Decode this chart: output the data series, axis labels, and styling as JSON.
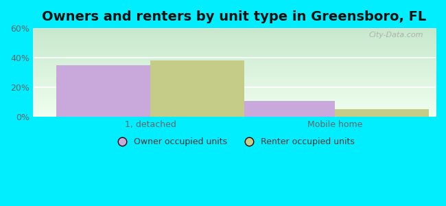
{
  "title": "Owners and renters by unit type in Greensboro, FL",
  "categories": [
    "1, detached",
    "Mobile home"
  ],
  "owner_values": [
    35.0,
    11.0
  ],
  "renter_values": [
    38.0,
    5.0
  ],
  "owner_color": "#c9a8dc",
  "renter_color": "#c5cc88",
  "ylim": [
    0,
    60
  ],
  "yticks": [
    0,
    20,
    40,
    60
  ],
  "ytick_labels": [
    "0%",
    "20%",
    "40%",
    "60%"
  ],
  "background_outer": "#00eeff",
  "plot_bg_topleft": "#c8e6c9",
  "plot_bg_bottomright": "#f5fff5",
  "bar_width": 0.28,
  "legend_labels": [
    "Owner occupied units",
    "Renter occupied units"
  ],
  "watermark": "City-Data.com",
  "title_fontsize": 14,
  "axis_label_fontsize": 9,
  "legend_fontsize": 9,
  "cat_centers": [
    0.3,
    0.85
  ],
  "xlim": [
    -0.05,
    1.15
  ]
}
